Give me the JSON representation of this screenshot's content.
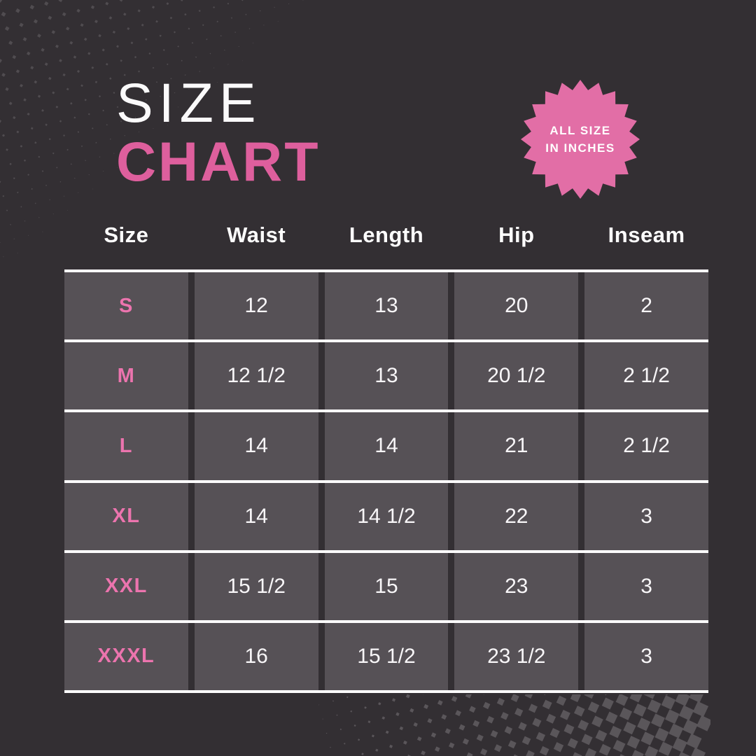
{
  "title": {
    "line1": "SIZE",
    "line2": "CHART"
  },
  "badge": {
    "line1": "ALL SIZE",
    "line2": "IN INCHES"
  },
  "table": {
    "columns": [
      "Size",
      "Waist",
      "Length",
      "Hip",
      "Inseam"
    ],
    "rows": [
      [
        "S",
        "12",
        "13",
        "20",
        "2"
      ],
      [
        "M",
        "12 1/2",
        "13",
        "20 1/2",
        "2 1/2"
      ],
      [
        "L",
        "14",
        "14",
        "21",
        "2 1/2"
      ],
      [
        "XL",
        "14",
        "14 1/2",
        "22",
        "3"
      ],
      [
        "XXL",
        "15 1/2",
        "15",
        "23",
        "3"
      ],
      [
        "XXXL",
        "16",
        "15 1/2",
        "23 1/2",
        "3"
      ]
    ]
  },
  "chart_data": {
    "type": "table",
    "title": "SIZE CHART",
    "note": "ALL SIZE IN INCHES",
    "columns": [
      "Size",
      "Waist",
      "Length",
      "Hip",
      "Inseam"
    ],
    "rows": [
      [
        "S",
        "12",
        "13",
        "20",
        "2"
      ],
      [
        "M",
        "12 1/2",
        "13",
        "20 1/2",
        "2 1/2"
      ],
      [
        "L",
        "14",
        "14",
        "21",
        "2 1/2"
      ],
      [
        "XL",
        "14",
        "14 1/2",
        "22",
        "3"
      ],
      [
        "XXL",
        "15 1/2",
        "15",
        "23",
        "3"
      ],
      [
        "XXXL",
        "16",
        "15 1/2",
        "23 1/2",
        "3"
      ]
    ]
  },
  "colors": {
    "background": "#332f33",
    "cell": "#565156",
    "line_white": "#fcfbfc",
    "title_pink": "#de5f9d",
    "badge_pink": "#e26ea6",
    "label_pink": "#ec74ae",
    "dot_gray": "#615d62"
  }
}
